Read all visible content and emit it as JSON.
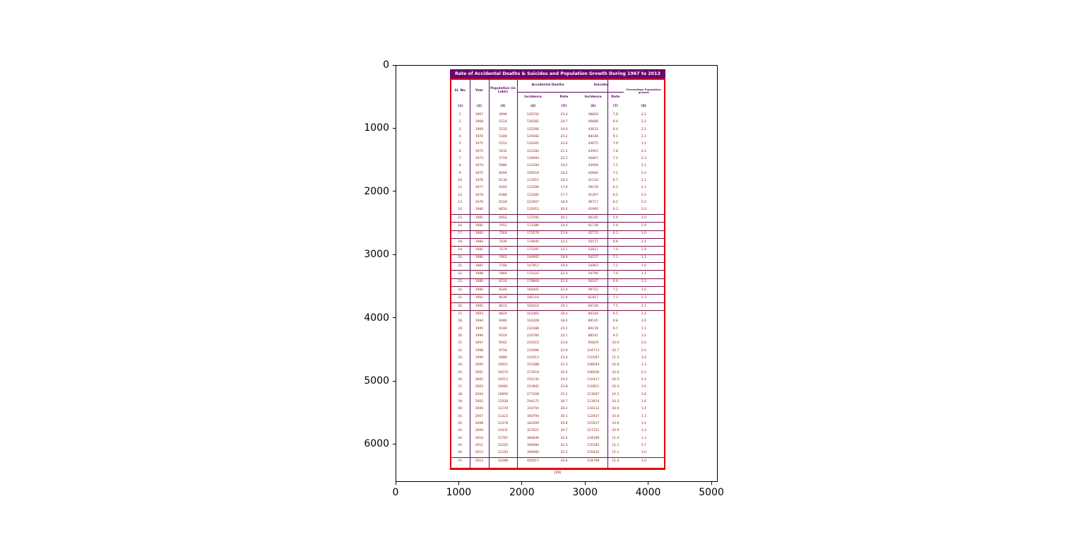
{
  "colors": {
    "title_bar_bg": "#6a0570",
    "title_text": "#ffffff",
    "outer_border_red": "#e8000f",
    "column_separator_purple": "#5c0a66",
    "row_rule": "#77104a",
    "body_text_maroon": "#85170e",
    "axis_black": "#000000"
  },
  "axes": {
    "x_ticks": [
      "0",
      "1000",
      "2000",
      "3000",
      "4000",
      "5000"
    ],
    "y_ticks": [
      "0",
      "1000",
      "2000",
      "3000",
      "4000",
      "5000",
      "6000"
    ],
    "x_tick_values": [
      0,
      1000,
      2000,
      3000,
      4000,
      5000
    ],
    "y_tick_values": [
      0,
      1000,
      2000,
      3000,
      4000,
      5000,
      6000
    ]
  },
  "chart_data": {
    "type": "table",
    "title": "Rate of Accidental Deaths & Suicides and Population Growth During 1967 to 2013",
    "caption": "(24)",
    "header": {
      "sl": "Sl. No.",
      "year": "Year",
      "pop": "Population (in Lakh)",
      "acc_group": "Accidental Deaths",
      "sui_group": "Suicides",
      "incidence_a": "Incidence",
      "rate_a": "Rate",
      "incidence_s": "Incidence",
      "rate_s": "Rate",
      "pct": "Percentage Population growth",
      "nums": [
        "(1)",
        "(2)",
        "(3)",
        "(4)",
        "(5)",
        "(6)",
        "(7)",
        "(8)"
      ]
    },
    "columns": [
      "Sl. No.",
      "Year",
      "Population (in Lakh)",
      "Accidental Deaths Incidence",
      "Accidental Deaths Rate",
      "Suicides Incidence",
      "Suicides Rate",
      "Percentage Population growth"
    ],
    "red_rule_rows": [
      15,
      16,
      17,
      18,
      19,
      20,
      21,
      22,
      23,
      24,
      25,
      26,
      27,
      47
    ],
    "rows": [
      [
        "1.",
        "1967",
        "4996",
        "126792",
        "25.4",
        "38829",
        "7.8",
        "2.2"
      ],
      [
        "2.",
        "1968",
        "5114",
        "126382",
        "24.7",
        "40888",
        "8.0",
        "2.2"
      ],
      [
        "3.",
        "1969",
        "5233",
        "125266",
        "24.0",
        "43633",
        "8.4",
        "2.2"
      ],
      [
        "4.",
        "1970",
        "5348",
        "129382",
        "24.2",
        "48428",
        "9.1",
        "2.3"
      ],
      [
        "5.",
        "1971",
        "5512",
        "130301",
        "23.6",
        "43675",
        "7.9",
        "3.1"
      ],
      [
        "6.",
        "1972",
        "5632",
        "121184",
        "21.5",
        "43901",
        "7.8",
        "2.2"
      ],
      [
        "7.",
        "1973",
        "5759",
        "130994",
        "22.7",
        "40807",
        "7.1",
        "2.3"
      ],
      [
        "8.",
        "1974",
        "5886",
        "113294",
        "19.2",
        "43908",
        "7.5",
        "2.2"
      ],
      [
        "9.",
        "1975",
        "6006",
        "109516",
        "18.2",
        "42890",
        "7.1",
        "2.0"
      ],
      [
        "10.",
        "1976",
        "6130",
        "111911",
        "18.3",
        "41116",
        "6.7",
        "2.1"
      ],
      [
        "11.",
        "1977",
        "6260",
        "112306",
        "17.9",
        "39178",
        "6.3",
        "2.1"
      ],
      [
        "12.",
        "1978",
        "6388",
        "113385",
        "17.7",
        "41207",
        "6.5",
        "2.0"
      ],
      [
        "13.",
        "1979",
        "6518",
        "122907",
        "18.9",
        "39717",
        "6.1",
        "2.0"
      ],
      [
        "14.",
        "1980",
        "6650",
        "132912",
        "20.0",
        "41960",
        "6.3",
        "2.0"
      ],
      [
        "15.",
        "1981",
        "6852",
        "137591",
        "20.1",
        "40245",
        "5.9",
        "3.0"
      ],
      [
        "16.",
        "1982",
        "7052",
        "172386",
        "24.4",
        "41738",
        "5.9",
        "2.9"
      ],
      [
        "17.",
        "1983",
        "7264",
        "173576",
        "23.9",
        "45772",
        "6.3",
        "3.0"
      ],
      [
        "18.",
        "1984",
        "7436",
        "174645",
        "23.5",
        "50571",
        "6.8",
        "2.4"
      ],
      [
        "19.",
        "1985",
        "7579",
        "175287",
        "23.1",
        "52811",
        "7.0",
        "1.9"
      ],
      [
        "20.",
        "1986",
        "7661",
        "144905",
        "18.9",
        "54157",
        "7.1",
        "1.1"
      ],
      [
        "21.",
        "1987",
        "7784",
        "147917",
        "19.0",
        "54963",
        "7.1",
        "1.6"
      ],
      [
        "22.",
        "1988",
        "7866",
        "175322",
        "22.3",
        "54790",
        "7.0",
        "1.1"
      ],
      [
        "23.",
        "1989",
        "8116",
        "178869",
        "22.0",
        "56167",
        "6.9",
        "3.2"
      ],
      [
        "24.",
        "1990",
        "8246",
        "184401",
        "22.4",
        "59751",
        "7.2",
        "1.6"
      ],
      [
        "25.",
        "1991",
        "8436",
        "185110",
        "21.9",
        "61817",
        "7.3",
        "2.3"
      ],
      [
        "26.",
        "1992",
        "8615",
        "164410",
        "19.1",
        "64729",
        "7.5",
        "2.1"
      ],
      [
        "27.",
        "1993",
        "8824",
        "162465",
        "18.4",
        "84244",
        "9.5",
        "2.4"
      ],
      [
        "28.",
        "1994",
        "9086",
        "163428",
        "18.0",
        "89195",
        "9.8",
        "3.0"
      ],
      [
        "29.",
        "1995",
        "9190",
        "222486",
        "24.2",
        "89178",
        "9.7",
        "1.1"
      ],
      [
        "30.",
        "1996",
        "9319",
        "224784",
        "24.1",
        "88241",
        "9.5",
        "1.4"
      ],
      [
        "31.",
        "1997",
        "9562",
        "225415",
        "23.6",
        "95829",
        "10.0",
        "2.6"
      ],
      [
        "32.",
        "1998",
        "9756",
        "233406",
        "23.9",
        "104713",
        "10.7",
        "2.0"
      ],
      [
        "33.",
        "1999",
        "9888",
        "231013",
        "23.4",
        "110587",
        "11.2",
        "1.4"
      ],
      [
        "34.",
        "2000",
        "10021",
        "253388",
        "25.3",
        "108593",
        "10.8",
        "1.3"
      ],
      [
        "35.",
        "2001",
        "10270",
        "271019",
        "26.4",
        "108506",
        "10.6",
        "2.5"
      ],
      [
        "36.",
        "2002",
        "10513",
        "252132",
        "24.0",
        "110417",
        "10.5",
        "2.4"
      ],
      [
        "37.",
        "2003",
        "10682",
        "253905",
        "23.8",
        "110851",
        "10.4",
        "1.6"
      ],
      [
        "38.",
        "2004",
        "10856",
        "277208",
        "25.5",
        "113697",
        "10.5",
        "1.6"
      ],
      [
        "39.",
        "2005",
        "11028",
        "294175",
        "26.7",
        "113914",
        "10.3",
        "1.6"
      ],
      [
        "40.",
        "2006",
        "11178",
        "314704",
        "28.2",
        "118112",
        "10.6",
        "1.4"
      ],
      [
        "41.",
        "2007",
        "11323",
        "340794",
        "30.1",
        "122637",
        "10.8",
        "1.3"
      ],
      [
        "42.",
        "2008",
        "11478",
        "342309",
        "29.8",
        "125017",
        "10.9",
        "1.4"
      ],
      [
        "43.",
        "2009",
        "11631",
        "357021",
        "30.7",
        "127151",
        "10.9",
        "1.3"
      ],
      [
        "44.",
        "2010",
        "11787",
        "384649",
        "32.6",
        "134599",
        "11.4",
        "1.3"
      ],
      [
        "45.",
        "2011",
        "12102",
        "390884",
        "32.3",
        "135585",
        "11.2",
        "2.7"
      ],
      [
        "46.",
        "2012",
        "12163",
        "394982",
        "32.5",
        "135445",
        "11.1",
        "1.0"
      ],
      [
        "47.",
        "2013",
        "12288",
        "400517",
        "32.6",
        "134799",
        "11.0",
        "1.0"
      ]
    ]
  }
}
